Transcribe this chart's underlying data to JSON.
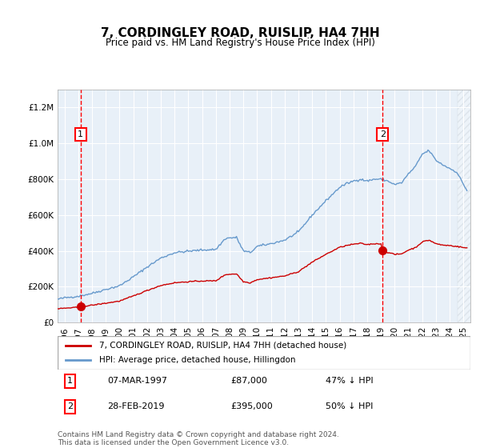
{
  "title": "7, CORDINGLEY ROAD, RUISLIP, HA4 7HH",
  "subtitle": "Price paid vs. HM Land Registry's House Price Index (HPI)",
  "legend_line1": "7, CORDINGLEY ROAD, RUISLIP, HA4 7HH (detached house)",
  "legend_line2": "HPI: Average price, detached house, Hillingdon",
  "annotation1": {
    "label": "1",
    "date_x": 1997.17,
    "price_paid": 87000,
    "date_str": "07-MAR-1997",
    "price_str": "£87,000",
    "pct_str": "47% ↓ HPI"
  },
  "annotation2": {
    "label": "2",
    "date_x": 2019.12,
    "price_paid": 395000,
    "date_str": "28-FEB-2019",
    "price_str": "£395,000",
    "pct_str": "50% ↓ HPI"
  },
  "footer": "Contains HM Land Registry data © Crown copyright and database right 2024.\nThis data is licensed under the Open Government Licence v3.0.",
  "line_color_red": "#cc0000",
  "line_color_blue": "#6699cc",
  "bg_color": "#dde8f0",
  "plot_bg_color": "#e8f0f8",
  "hatch_color": "#c0c8d0",
  "ylim": [
    0,
    1300000
  ],
  "xlim_start": 1995.5,
  "xlim_end": 2025.5
}
